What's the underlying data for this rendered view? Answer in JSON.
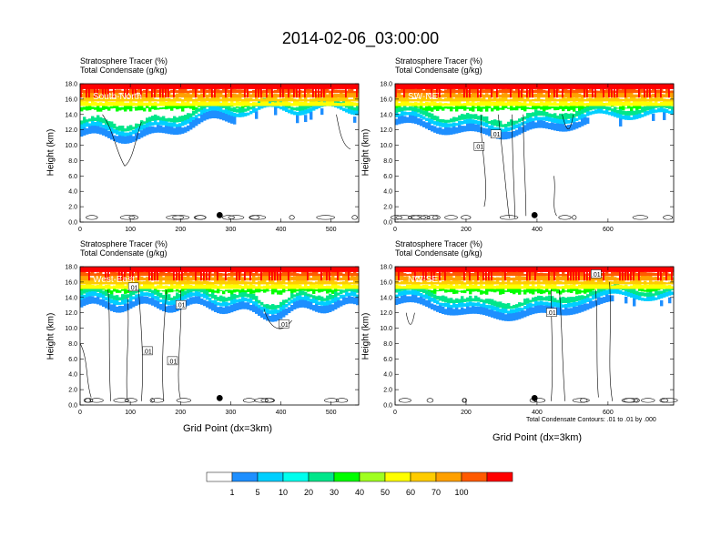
{
  "title": "2014-02-06_03:00:00",
  "colors": {
    "levels": [
      "#ffffff",
      "#1e8fff",
      "#00cfff",
      "#00ffee",
      "#00e68a",
      "#00ff00",
      "#a0ff20",
      "#ffff00",
      "#ffcc00",
      "#ffa000",
      "#ff5a00",
      "#ff0000"
    ]
  },
  "chart_data": [
    {
      "type": "heatmap",
      "panel_label": "South-North",
      "title_lines": [
        "Stratosphere Tracer   (%)",
        "Total Condensate   (g/kg)"
      ],
      "ylabel": "Height (km)",
      "xlabel": "",
      "yticks": [
        "0.0",
        "2.0",
        "4.0",
        "6.0",
        "8.0",
        "10.0",
        "12.0",
        "14.0",
        "16.0",
        "18.0"
      ],
      "ylim": [
        0,
        18
      ],
      "xlim": [
        0,
        555
      ],
      "xticks": [
        "0",
        "100",
        "200",
        "300",
        "400",
        "500"
      ],
      "xtick_values": [
        0,
        100,
        200,
        300,
        400,
        500
      ],
      "contour_labels": [],
      "marker_x": 278
    },
    {
      "type": "heatmap",
      "panel_label": "SW-NE",
      "title_lines": [
        "Stratosphere Tracer   (%)",
        "Total Condensate   (g/kg)"
      ],
      "ylabel": "Height (km)",
      "xlabel": "",
      "yticks": [
        "0.0",
        "2.0",
        "4.0",
        "6.0",
        "8.0",
        "10.0",
        "12.0",
        "14.0",
        "16.0",
        "18.0"
      ],
      "ylim": [
        0,
        18
      ],
      "xlim": [
        0,
        785
      ],
      "xticks": [
        "0",
        "200",
        "400",
        "600"
      ],
      "xtick_values": [
        0,
        200,
        400,
        600
      ],
      "contour_labels": [
        ".01",
        ".01"
      ],
      "marker_x": 393
    },
    {
      "type": "heatmap",
      "panel_label": "West-East",
      "title_lines": [
        "Stratosphere Tracer   (%)",
        "Total Condensate   (g/kg)"
      ],
      "ylabel": "Height (km)",
      "xlabel": "Grid Point (dx=3km)",
      "yticks": [
        "0.0",
        "2.0",
        "4.0",
        "6.0",
        "8.0",
        "10.0",
        "12.0",
        "14.0",
        "16.0",
        "18.0"
      ],
      "ylim": [
        0,
        18
      ],
      "xlim": [
        0,
        555
      ],
      "xticks": [
        "0",
        "100",
        "200",
        "300",
        "400",
        "500"
      ],
      "xtick_values": [
        0,
        100,
        200,
        300,
        400,
        500
      ],
      "contour_labels": [
        ".01",
        ".01",
        ".01",
        ".01",
        ".01"
      ],
      "marker_x": 278
    },
    {
      "type": "heatmap",
      "panel_label": "NW-SE",
      "title_lines": [
        "Stratosphere Tracer   (%)",
        "Total Condensate   (g/kg)"
      ],
      "ylabel": "Height (km)",
      "xlabel": "Grid Point (dx=3km)",
      "yticks": [
        "0.0",
        "2.0",
        "4.0",
        "6.0",
        "8.0",
        "10.0",
        "12.0",
        "14.0",
        "16.0",
        "18.0"
      ],
      "ylim": [
        0,
        18
      ],
      "xlim": [
        0,
        785
      ],
      "xticks": [
        "0",
        "200",
        "400",
        "600"
      ],
      "xtick_values": [
        0,
        200,
        400,
        600
      ],
      "contour_labels": [
        ".01",
        ".01"
      ],
      "marker_x": 393
    }
  ],
  "contour_note": "Total Condensate Contours: .01 to .01 by .000",
  "colorbar": {
    "labels": [
      "1",
      "5",
      "10",
      "20",
      "30",
      "40",
      "50",
      "60",
      "70",
      "100"
    ]
  }
}
